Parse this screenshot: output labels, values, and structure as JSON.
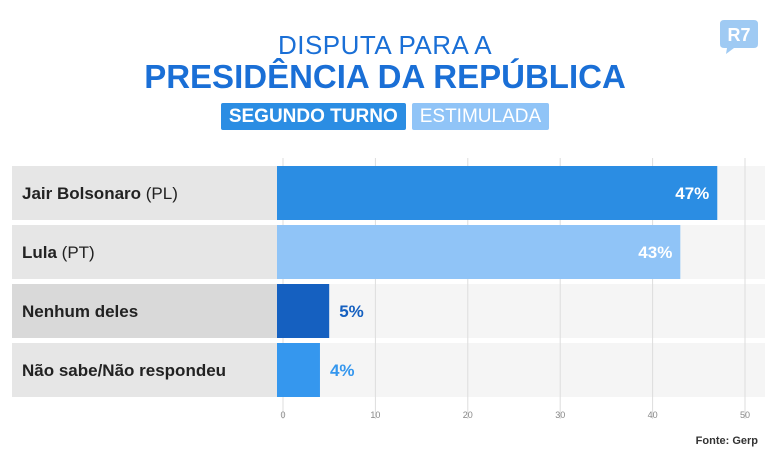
{
  "header": {
    "title_line1": "DISPUTA PARA A",
    "title_line2": "PRESIDÊNCIA DA REPÚBLICA",
    "badge_round": "SEGUNDO TURNO",
    "badge_type": "ESTIMULADA",
    "logo_text": "R7"
  },
  "footer": {
    "source": "Fonte: Gerp"
  },
  "colors": {
    "brand_blue": "#1a6fd6",
    "bolsonaro_bar": "#2b8de3",
    "lula_bar": "#90c4f7",
    "nenhum_bar": "#1560c0",
    "nao_sabe_bar": "#3597ee"
  },
  "chart_data": {
    "type": "bar",
    "orientation": "horizontal",
    "categories": [
      {
        "bold": "Jair Bolsonaro",
        "normal": " (PL)"
      },
      {
        "bold": "Lula",
        "normal": " (PT)"
      },
      {
        "bold": "Nenhum deles",
        "normal": ""
      },
      {
        "bold": "Não sabe/Não respondeu",
        "normal": ""
      }
    ],
    "values": [
      47,
      43,
      5,
      4
    ],
    "value_labels": [
      "47%",
      "43%",
      "5%",
      "4%"
    ],
    "xlim": [
      0,
      50
    ],
    "xticks": [
      0,
      10,
      20,
      30,
      40,
      50
    ],
    "grid": true
  }
}
